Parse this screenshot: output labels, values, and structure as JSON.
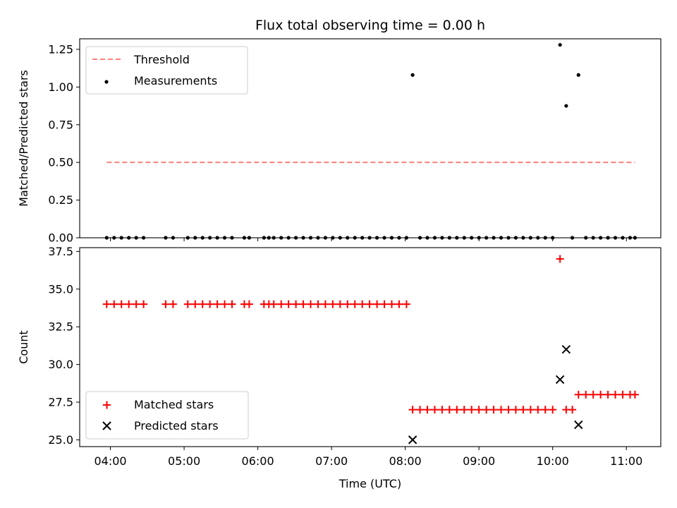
{
  "chart_data": [
    {
      "type": "scatter",
      "title": "Flux total observing time = 0.00 h",
      "xlabel": "",
      "ylabel": "Matched/Predicted stars",
      "ylim": [
        0,
        1.32
      ],
      "yticks": [
        "0.00",
        "0.25",
        "0.50",
        "0.75",
        "1.00",
        "1.25"
      ],
      "legend": {
        "placement": "top-left"
      },
      "series": [
        {
          "name": "Threshold",
          "kind": "dashed-line",
          "color": "#ff7f7f",
          "x": [
            "03:57",
            "11:07"
          ],
          "y": [
            0.5,
            0.5
          ]
        },
        {
          "name": "Measurements",
          "kind": "dot",
          "color": "#000000",
          "points": [
            [
              "03:57",
              0
            ],
            [
              "04:03",
              0
            ],
            [
              "04:09",
              0
            ],
            [
              "04:15",
              0
            ],
            [
              "04:21",
              0
            ],
            [
              "04:27",
              0
            ],
            [
              "04:45",
              0
            ],
            [
              "04:51",
              0
            ],
            [
              "05:03",
              0
            ],
            [
              "05:09",
              0
            ],
            [
              "05:15",
              0
            ],
            [
              "05:21",
              0
            ],
            [
              "05:27",
              0
            ],
            [
              "05:33",
              0
            ],
            [
              "05:39",
              0
            ],
            [
              "05:49",
              0
            ],
            [
              "05:53",
              0
            ],
            [
              "06:05",
              0
            ],
            [
              "06:09",
              0
            ],
            [
              "06:13",
              0
            ],
            [
              "06:19",
              0
            ],
            [
              "06:25",
              0
            ],
            [
              "06:31",
              0
            ],
            [
              "06:37",
              0
            ],
            [
              "06:43",
              0
            ],
            [
              "06:49",
              0
            ],
            [
              "06:55",
              0
            ],
            [
              "07:01",
              0
            ],
            [
              "07:07",
              0
            ],
            [
              "07:13",
              0
            ],
            [
              "07:19",
              0
            ],
            [
              "07:25",
              0
            ],
            [
              "07:31",
              0
            ],
            [
              "07:37",
              0
            ],
            [
              "07:43",
              0
            ],
            [
              "07:49",
              0
            ],
            [
              "07:55",
              0
            ],
            [
              "08:01",
              0
            ],
            [
              "08:06",
              1.08
            ],
            [
              "08:12",
              0
            ],
            [
              "08:18",
              0
            ],
            [
              "08:24",
              0
            ],
            [
              "08:30",
              0
            ],
            [
              "08:36",
              0
            ],
            [
              "08:42",
              0
            ],
            [
              "08:48",
              0
            ],
            [
              "08:54",
              0
            ],
            [
              "09:00",
              0
            ],
            [
              "09:06",
              0
            ],
            [
              "09:12",
              0
            ],
            [
              "09:18",
              0
            ],
            [
              "09:24",
              0
            ],
            [
              "09:30",
              0
            ],
            [
              "09:36",
              0
            ],
            [
              "09:42",
              0
            ],
            [
              "09:48",
              0
            ],
            [
              "09:54",
              0
            ],
            [
              "10:00",
              0
            ],
            [
              "10:06",
              1.28
            ],
            [
              "10:11",
              0.875
            ],
            [
              "10:16",
              0
            ],
            [
              "10:21",
              1.08
            ],
            [
              "10:27",
              0
            ],
            [
              "10:33",
              0
            ],
            [
              "10:39",
              0
            ],
            [
              "10:45",
              0
            ],
            [
              "10:51",
              0
            ],
            [
              "10:57",
              0
            ],
            [
              "11:03",
              0
            ],
            [
              "11:07",
              0
            ]
          ]
        }
      ]
    },
    {
      "type": "scatter",
      "title": "",
      "xlabel": "Time (UTC)",
      "ylabel": "Count",
      "xlim": [
        "03:35",
        "11:28"
      ],
      "xticks": [
        "04:00",
        "05:00",
        "06:00",
        "07:00",
        "08:00",
        "09:00",
        "10:00",
        "11:00"
      ],
      "ylim": [
        24.55,
        37.75
      ],
      "yticks": [
        "25.0",
        "27.5",
        "30.0",
        "32.5",
        "35.0",
        "37.5"
      ],
      "legend": {
        "placement": "bottom-left"
      },
      "series": [
        {
          "name": "Matched stars",
          "kind": "plus",
          "color": "#ff0000",
          "points": [
            [
              "03:57",
              34
            ],
            [
              "04:03",
              34
            ],
            [
              "04:09",
              34
            ],
            [
              "04:15",
              34
            ],
            [
              "04:21",
              34
            ],
            [
              "04:27",
              34
            ],
            [
              "04:45",
              34
            ],
            [
              "04:51",
              34
            ],
            [
              "05:03",
              34
            ],
            [
              "05:09",
              34
            ],
            [
              "05:15",
              34
            ],
            [
              "05:21",
              34
            ],
            [
              "05:27",
              34
            ],
            [
              "05:33",
              34
            ],
            [
              "05:39",
              34
            ],
            [
              "05:49",
              34
            ],
            [
              "05:53",
              34
            ],
            [
              "06:05",
              34
            ],
            [
              "06:09",
              34
            ],
            [
              "06:13",
              34
            ],
            [
              "06:19",
              34
            ],
            [
              "06:25",
              34
            ],
            [
              "06:31",
              34
            ],
            [
              "06:37",
              34
            ],
            [
              "06:43",
              34
            ],
            [
              "06:49",
              34
            ],
            [
              "06:55",
              34
            ],
            [
              "07:01",
              34
            ],
            [
              "07:07",
              34
            ],
            [
              "07:13",
              34
            ],
            [
              "07:19",
              34
            ],
            [
              "07:25",
              34
            ],
            [
              "07:31",
              34
            ],
            [
              "07:37",
              34
            ],
            [
              "07:43",
              34
            ],
            [
              "07:49",
              34
            ],
            [
              "07:55",
              34
            ],
            [
              "08:01",
              34
            ],
            [
              "08:06",
              27
            ],
            [
              "08:12",
              27
            ],
            [
              "08:18",
              27
            ],
            [
              "08:24",
              27
            ],
            [
              "08:30",
              27
            ],
            [
              "08:36",
              27
            ],
            [
              "08:42",
              27
            ],
            [
              "08:48",
              27
            ],
            [
              "08:54",
              27
            ],
            [
              "09:00",
              27
            ],
            [
              "09:06",
              27
            ],
            [
              "09:12",
              27
            ],
            [
              "09:18",
              27
            ],
            [
              "09:24",
              27
            ],
            [
              "09:30",
              27
            ],
            [
              "09:36",
              27
            ],
            [
              "09:42",
              27
            ],
            [
              "09:48",
              27
            ],
            [
              "09:54",
              27
            ],
            [
              "10:00",
              27
            ],
            [
              "10:06",
              37
            ],
            [
              "10:11",
              27
            ],
            [
              "10:16",
              27
            ],
            [
              "10:21",
              28
            ],
            [
              "10:27",
              28
            ],
            [
              "10:33",
              28
            ],
            [
              "10:39",
              28
            ],
            [
              "10:45",
              28
            ],
            [
              "10:51",
              28
            ],
            [
              "10:57",
              28
            ],
            [
              "11:03",
              28
            ],
            [
              "11:07",
              28
            ]
          ]
        },
        {
          "name": "Predicted stars",
          "kind": "cross",
          "color": "#000000",
          "points": [
            [
              "08:06",
              25
            ],
            [
              "10:06",
              29
            ],
            [
              "10:11",
              31
            ],
            [
              "10:21",
              26
            ]
          ]
        }
      ]
    }
  ]
}
